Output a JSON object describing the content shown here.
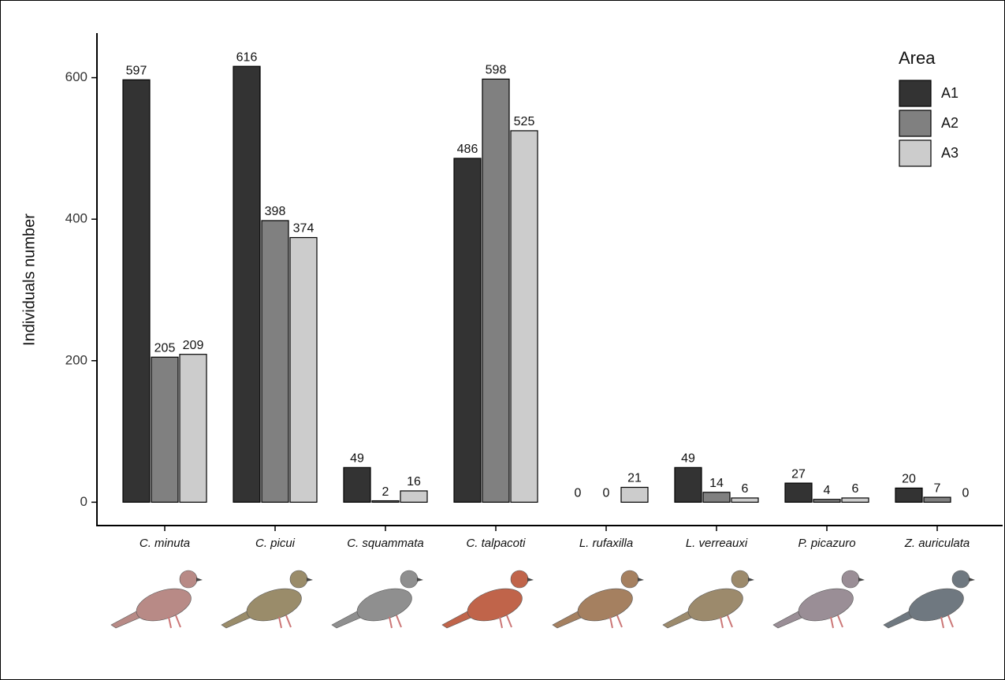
{
  "chart_data": {
    "type": "bar",
    "y_label": "Individuals number",
    "categories": [
      "C. minuta",
      "C. picui",
      "C. squammata",
      "C. talpacoti",
      "L. rufaxilla",
      "L. verreauxi",
      "P. picazuro",
      "Z. auriculata"
    ],
    "legend_title": "Area",
    "series": [
      {
        "name": "A1",
        "color": "#333333",
        "values": [
          597,
          616,
          49,
          486,
          0,
          49,
          27,
          20
        ]
      },
      {
        "name": "A2",
        "color": "#808080",
        "values": [
          205,
          398,
          2,
          598,
          0,
          14,
          4,
          7
        ]
      },
      {
        "name": "A3",
        "color": "#cccccc",
        "values": [
          209,
          374,
          16,
          525,
          21,
          6,
          6,
          0
        ]
      }
    ],
    "ylim": [
      -33,
      663
    ],
    "yticks": [
      0,
      200,
      400,
      600
    ],
    "grid": false,
    "legend": "top-right"
  }
}
